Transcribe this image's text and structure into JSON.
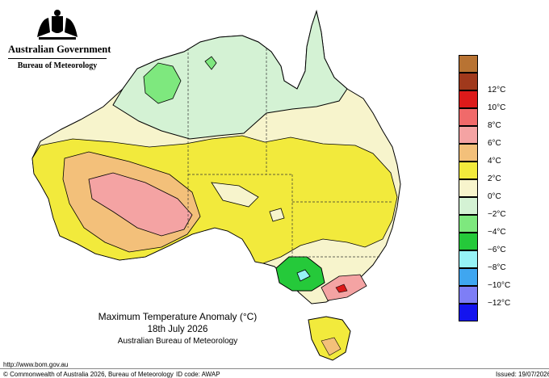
{
  "header": {
    "government": "Australian Government",
    "agency": "Bureau of Meteorology"
  },
  "map": {
    "title": "Maximum Temperature Anomaly (°C)",
    "date": "18th July 2026",
    "source": "Australian Bureau of Meteorology"
  },
  "legend": [
    {
      "label": "",
      "color": "#b87333"
    },
    {
      "label": "12°C",
      "color": "#a0391c"
    },
    {
      "label": "10°C",
      "color": "#dd1a1a"
    },
    {
      "label": "8°C",
      "color": "#f06a6a"
    },
    {
      "label": "6°C",
      "color": "#f4a3a3"
    },
    {
      "label": "4°C",
      "color": "#f3c07a"
    },
    {
      "label": "2°C",
      "color": "#f2ea3c"
    },
    {
      "label": "0°C",
      "color": "#f7f4cc"
    },
    {
      "label": "−2°C",
      "color": "#d4f2d4"
    },
    {
      "label": "−4°C",
      "color": "#7ee87e"
    },
    {
      "label": "−6°C",
      "color": "#25c93a"
    },
    {
      "label": "−8°C",
      "color": "#96f2f6"
    },
    {
      "label": "−10°C",
      "color": "#3fa6f0"
    },
    {
      "label": "−12°C",
      "color": "#7e7ef6"
    },
    {
      "label": "",
      "color": "#1414ee"
    }
  ],
  "footer": {
    "url": "http://www.bom.gov.au",
    "copyright": "© Commonwealth of Australia 2026, Bureau of Meteorology",
    "id_code": "ID code: AWAP",
    "issued": "Issued: 19/07/2026"
  }
}
